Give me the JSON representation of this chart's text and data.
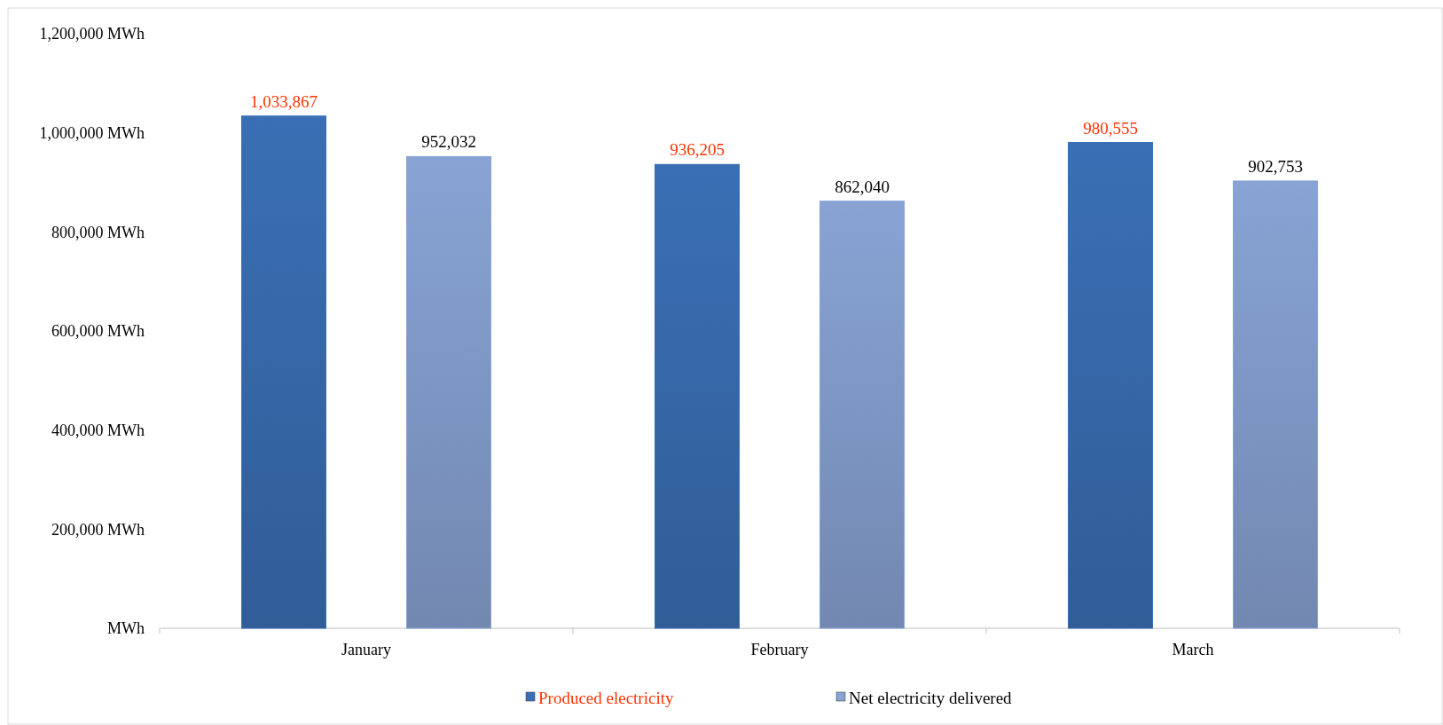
{
  "chart_data": {
    "type": "bar",
    "categories": [
      "January",
      "February",
      "March"
    ],
    "series": [
      {
        "name": "Produced electricity",
        "color": "#3a6fb5",
        "values": [
          1033867,
          936205,
          980555
        ],
        "value_labels": [
          "1,033,867",
          "936,205",
          "980,555"
        ]
      },
      {
        "name": "Net electricity delivered",
        "color": "#88a3d4",
        "values": [
          952032,
          862040,
          902753
        ],
        "value_labels": [
          "952,032",
          "862,040",
          "902,753"
        ]
      }
    ],
    "ylim": [
      0,
      1200000
    ],
    "yticks": [
      {
        "value": 0,
        "label": "MWh"
      },
      {
        "value": 200000,
        "label": "200,000 MWh"
      },
      {
        "value": 400000,
        "label": "400,000 MWh"
      },
      {
        "value": 600000,
        "label": "600,000 MWh"
      },
      {
        "value": 800000,
        "label": "800,000 MWh"
      },
      {
        "value": 1000000,
        "label": "1,000,000 MWh"
      },
      {
        "value": 1200000,
        "label": "1,200,000 MWh"
      }
    ],
    "grid": false,
    "legend": "bottom"
  }
}
